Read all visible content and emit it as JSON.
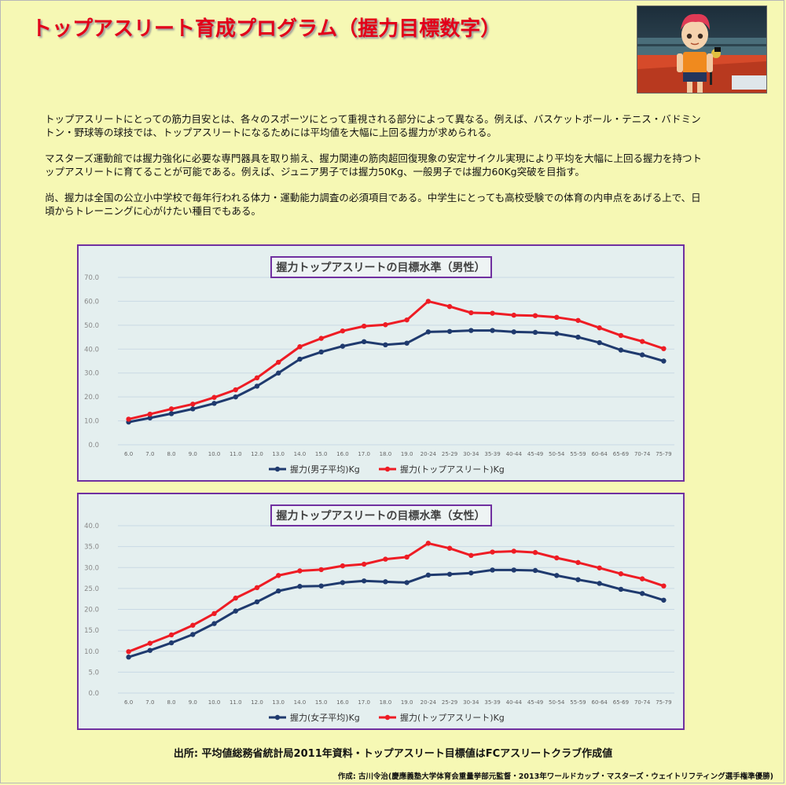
{
  "title": "トップアスリート育成プログラム（握力目標数字）",
  "paragraphs": [
    "トップアスリートにとっての筋力目安とは、各々のスポーツにとって重視される部分によって異なる。例えば、バスケットボール・テニス・バドミントン・野球等の球技では、トップアスリートになるためには平均値を大幅に上回る握力が求められる。",
    "マスターズ運動館では握力強化に必要な専門器具を取り揃え、握力関連の筋肉超回復現象の安定サイクル実現により平均を大幅に上回る握力を持つトップアスリートに育てることが可能である。例えば、ジュニア男子では握力50Kg、一般男子では握力60Kg突破を目指す。",
    "尚、握力は全国の公立小中学校で毎年行われる体力・運動能力調査の必須項目である。中学生にとっても高校受験での体育の内申点をあげる上で、日頃からトレーニングに心がけたい種目でもある。"
  ],
  "source": "出所: 平均値総務省統計局2011年資料・トップアスリート目標値はFCアスリートクラブ作成値",
  "author": "作成: 古川令治(慶應義塾大学体育会重量挙部元監督・2013年ワールドカップ・マスターズ・ウェイトリフティング選手権準優勝)",
  "colors": {
    "average": "#1f3a6e",
    "top": "#ee1c24",
    "frame": "#7030a0",
    "title": "#e2001a"
  },
  "chart_data": [
    {
      "type": "line",
      "title": "握力トップアスリートの目標水準（男性）",
      "categories": [
        "6.0",
        "7.0",
        "8.0",
        "9.0",
        "10.0",
        "11.0",
        "12.0",
        "13.0",
        "14.0",
        "15.0",
        "16.0",
        "17.0",
        "18.0",
        "19.0",
        "20-24",
        "25-29",
        "30-34",
        "35-39",
        "40-44",
        "45-49",
        "50-54",
        "55-59",
        "60-64",
        "65-69",
        "70-74",
        "75-79"
      ],
      "ylim": [
        0,
        70
      ],
      "yticks": [
        "0.0",
        "10.0",
        "20.0",
        "30.0",
        "40.0",
        "50.0",
        "60.0",
        "70.0"
      ],
      "ystep": 10,
      "grid": true,
      "legend_position": "bottom",
      "series": [
        {
          "name": "握力(男子平均)Kg",
          "values": [
            9.5,
            11.2,
            13.0,
            15.0,
            17.3,
            20.0,
            24.5,
            30.0,
            35.8,
            38.8,
            41.2,
            43.1,
            41.8,
            42.5,
            47.2,
            47.4,
            47.8,
            47.8,
            47.2,
            47.0,
            46.5,
            45.0,
            42.7,
            39.6,
            37.6,
            35.0
          ]
        },
        {
          "name": "握力(トップアスリート)Kg",
          "values": [
            10.7,
            12.8,
            15.0,
            17.0,
            19.8,
            23.0,
            28.0,
            34.5,
            41.0,
            44.5,
            47.6,
            49.6,
            50.2,
            52.2,
            60.0,
            57.8,
            55.2,
            55.0,
            54.2,
            54.0,
            53.3,
            52.0,
            48.9,
            45.7,
            43.2,
            40.2
          ]
        }
      ]
    },
    {
      "type": "line",
      "title": "握力トップアスリートの目標水準（女性）",
      "categories": [
        "6.0",
        "7.0",
        "8.0",
        "9.0",
        "10.0",
        "11.0",
        "12.0",
        "13.0",
        "14.0",
        "15.0",
        "16.0",
        "17.0",
        "18.0",
        "19.0",
        "20-24",
        "25-29",
        "30-34",
        "35-39",
        "40-44",
        "45-49",
        "50-54",
        "55-59",
        "60-64",
        "65-69",
        "70-74",
        "75-79"
      ],
      "ylim": [
        0,
        40
      ],
      "yticks": [
        "0.0",
        "5.0",
        "10.0",
        "15.0",
        "20.0",
        "25.0",
        "30.0",
        "35.0",
        "40.0"
      ],
      "ystep": 5,
      "grid": true,
      "legend_position": "bottom",
      "series": [
        {
          "name": "握力(女子平均)Kg",
          "values": [
            8.6,
            10.2,
            12.0,
            14.0,
            16.6,
            19.6,
            21.8,
            24.4,
            25.5,
            25.6,
            26.4,
            26.8,
            26.6,
            26.4,
            28.2,
            28.4,
            28.7,
            29.4,
            29.4,
            29.3,
            28.1,
            27.1,
            26.2,
            24.8,
            23.8,
            22.2
          ]
        },
        {
          "name": "握力(トップアスリート)Kg",
          "values": [
            9.9,
            11.9,
            13.9,
            16.2,
            19.0,
            22.7,
            25.2,
            28.1,
            29.2,
            29.5,
            30.4,
            30.8,
            32.0,
            32.5,
            35.8,
            34.6,
            32.9,
            33.7,
            33.9,
            33.6,
            32.3,
            31.2,
            29.9,
            28.5,
            27.3,
            25.6
          ]
        }
      ]
    }
  ]
}
